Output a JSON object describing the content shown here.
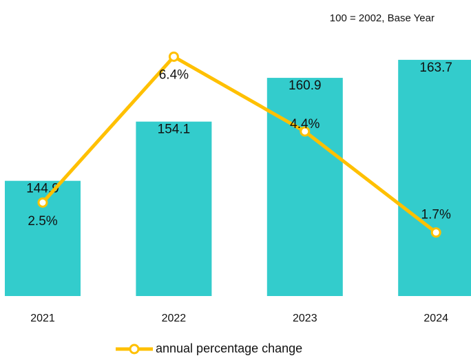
{
  "chart_data": {
    "type": "bar",
    "annotation": "100 = 2002, Base Year",
    "categories": [
      "2021",
      "2022",
      "2023",
      "2024"
    ],
    "series": [
      {
        "color": "#33cccc",
        "values": [
          144.9,
          154.1,
          160.9,
          163.7
        ]
      },
      {
        "name": "annual percentage change",
        "color": "#ffc000",
        "values": [
          2.5,
          6.4,
          4.4,
          1.7
        ],
        "value_labels": [
          "2.5%",
          "6.4%",
          "4.4%",
          "1.7%"
        ],
        "axis": "y2"
      }
    ],
    "ylim": [
      127,
      170
    ],
    "y2lim": [
      0,
      7.4
    ]
  }
}
